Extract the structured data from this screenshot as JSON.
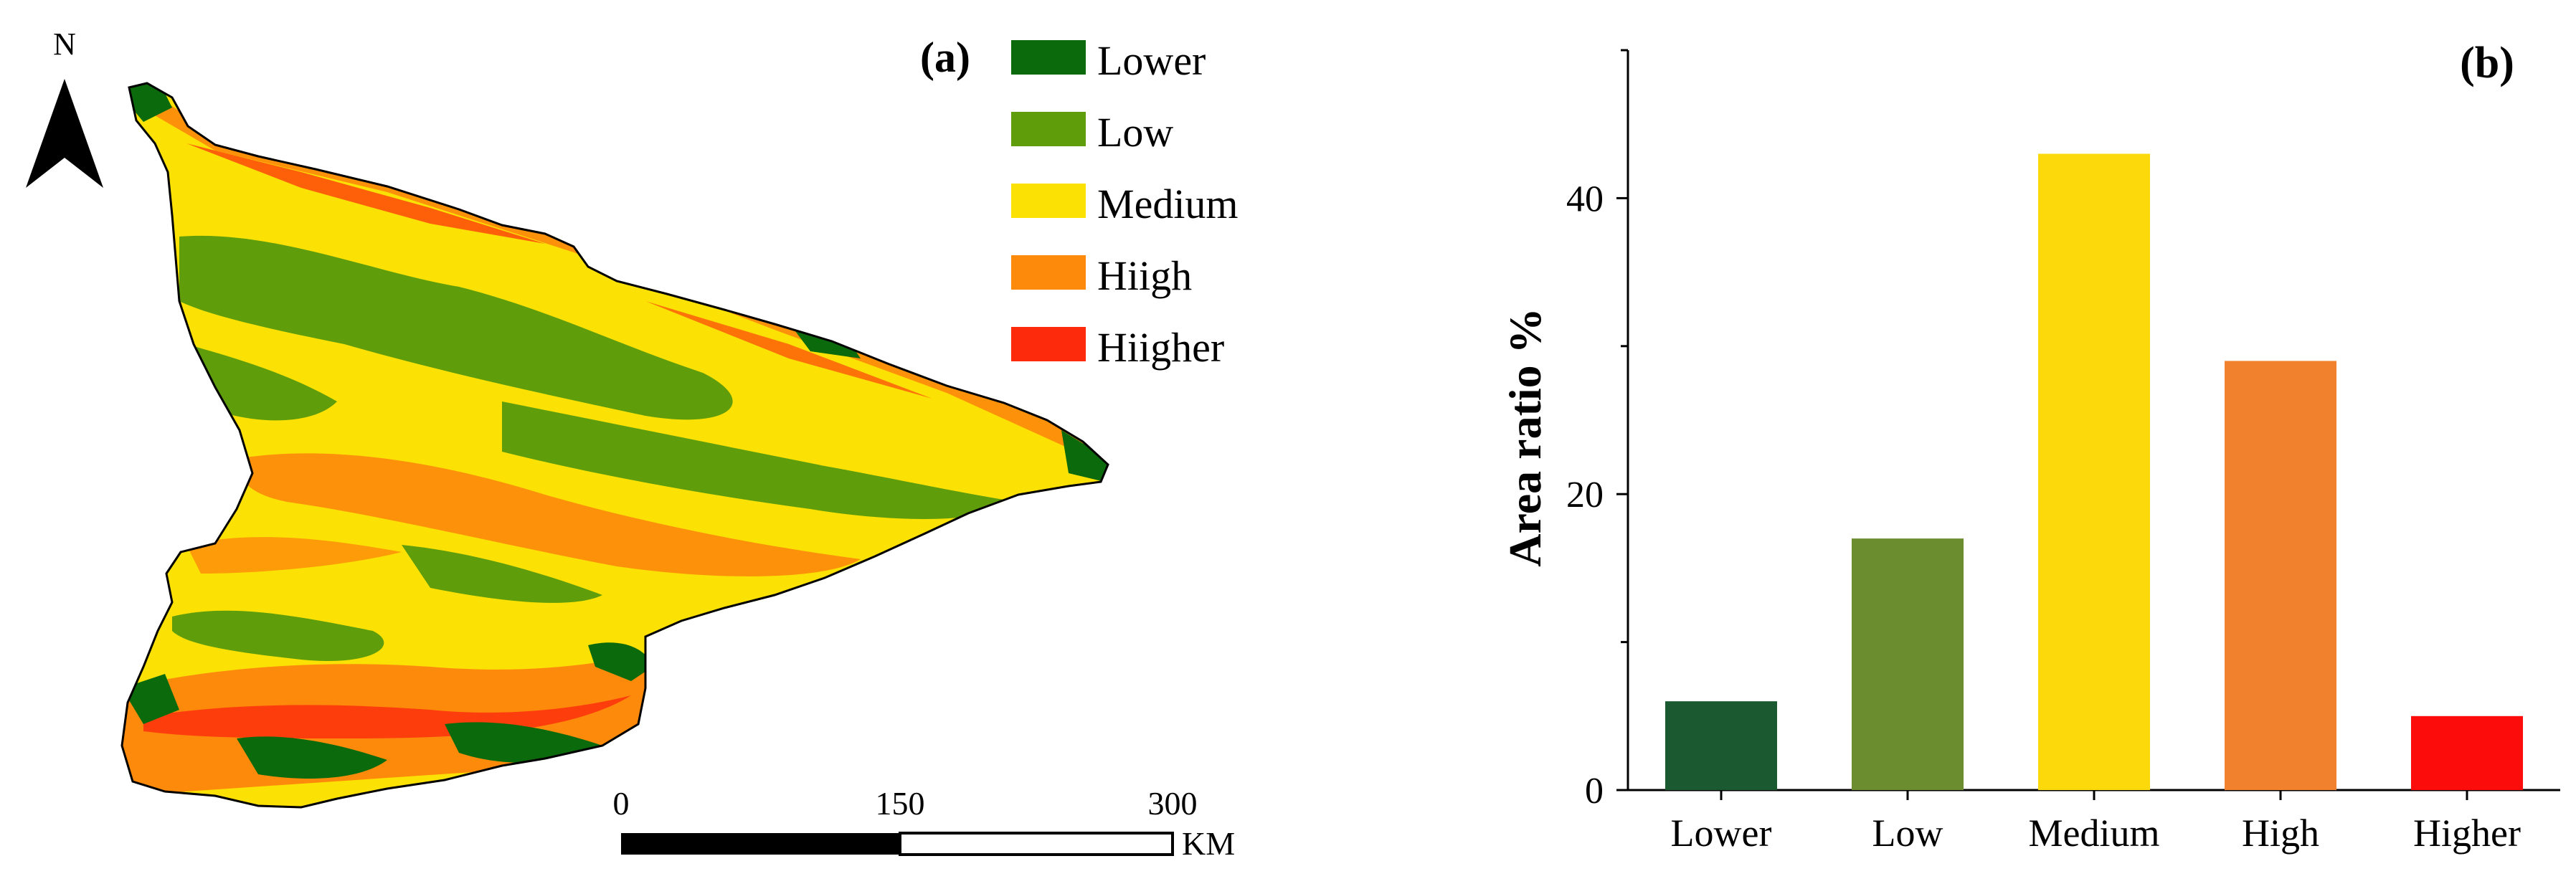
{
  "panel_a": {
    "label": "(a)",
    "north_label": "N",
    "legend": [
      {
        "name": "Lower",
        "color": "#0b6a0b"
      },
      {
        "name": "Low",
        "color": "#5f9e0a"
      },
      {
        "name": "Medium",
        "color": "#fce104"
      },
      {
        "name": "Hiigh",
        "color": "#fd8a0b"
      },
      {
        "name": "Hiigher",
        "color": "#fd2a0c"
      }
    ],
    "scale_bar": {
      "ticks": [
        "0",
        "150",
        "300"
      ],
      "unit": "KM"
    }
  },
  "chart_data": {
    "type": "bar",
    "panel_label": "(b)",
    "title": "",
    "xlabel": "",
    "ylabel": "Area ratio %",
    "categories": [
      "Lower",
      "Low",
      "Medium",
      "High",
      "Higher"
    ],
    "values": [
      6,
      17,
      43,
      29,
      5
    ],
    "colors": [
      "#1b5a30",
      "#6c8c30",
      "#fbd90a",
      "#f2812e",
      "#fd0c0c"
    ],
    "ylim": [
      0,
      50
    ],
    "yticks": [
      0,
      20,
      40
    ],
    "grid": false
  }
}
